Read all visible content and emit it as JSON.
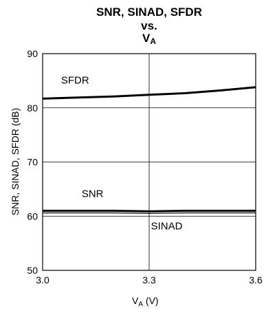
{
  "chart_data": {
    "type": "line",
    "title_line1": "SNR, SINAD, SFDR",
    "title_line2": "vs.",
    "title_line3_main": "V",
    "title_line3_sub": "A",
    "xlabel_main": "V",
    "xlabel_sub": "A",
    "xlabel_unit": " (V)",
    "ylabel": "SNR, SINAD, SFDR (dB)",
    "xlim": [
      3.0,
      3.6
    ],
    "ylim": [
      50,
      90
    ],
    "x_ticks": [
      "3.0",
      "3.3",
      "3.6"
    ],
    "y_ticks": [
      "50",
      "60",
      "70",
      "80",
      "90"
    ],
    "grid": true,
    "series": [
      {
        "name": "SFDR",
        "x": [
          3.0,
          3.1,
          3.2,
          3.3,
          3.4,
          3.5,
          3.6
        ],
        "y": [
          81.7,
          81.9,
          82.1,
          82.4,
          82.7,
          83.2,
          83.8
        ]
      },
      {
        "name": "SNR",
        "x": [
          3.0,
          3.1,
          3.2,
          3.3,
          3.4,
          3.5,
          3.6
        ],
        "y": [
          61.0,
          61.0,
          61.0,
          60.9,
          61.0,
          61.0,
          61.0
        ]
      },
      {
        "name": "SINAD",
        "x": [
          3.0,
          3.1,
          3.2,
          3.3,
          3.4,
          3.5,
          3.6
        ],
        "y": [
          60.6,
          60.6,
          60.6,
          60.5,
          60.6,
          60.6,
          60.6
        ]
      }
    ]
  }
}
